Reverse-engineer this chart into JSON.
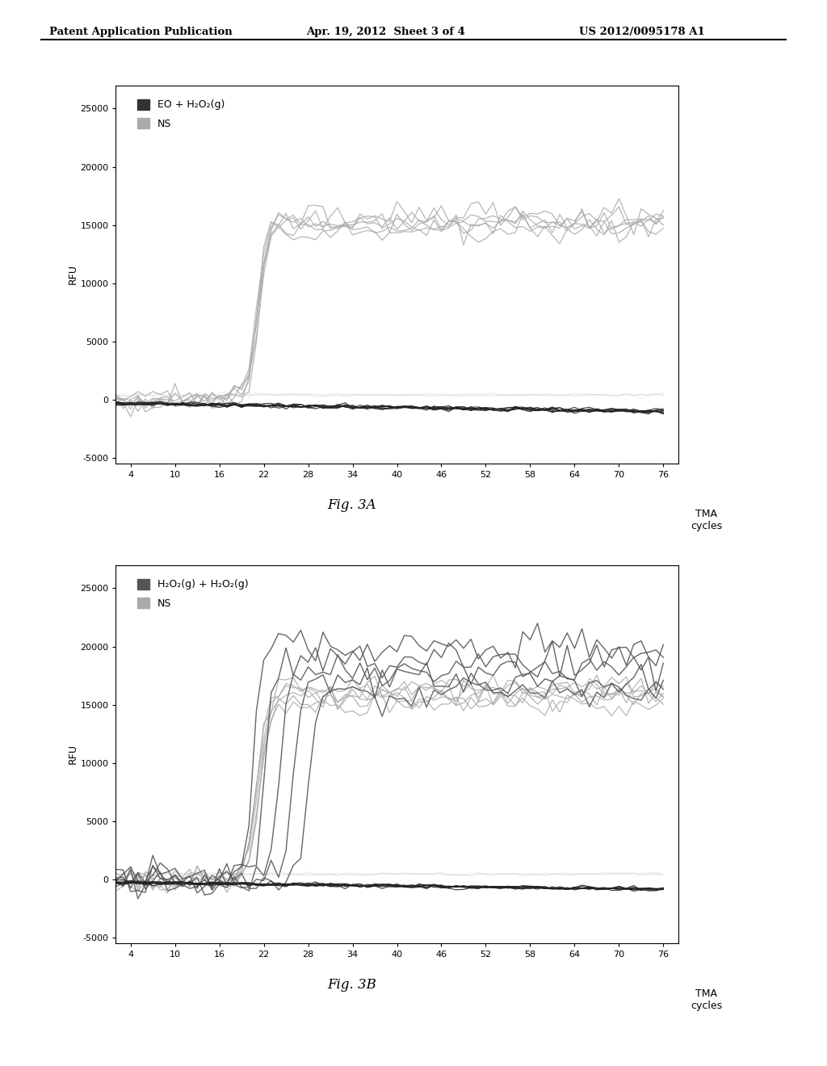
{
  "header_left": "Patent Application Publication",
  "header_mid": "Apr. 19, 2012  Sheet 3 of 4",
  "header_right": "US 2012/0095178 A1",
  "fig3a_title": "Fig. 3A",
  "fig3b_title": "Fig. 3B",
  "tma_label": "TMA\ncycles",
  "ylabel": "RFU",
  "xticks": [
    4,
    10,
    16,
    22,
    28,
    34,
    40,
    46,
    52,
    58,
    64,
    70,
    76
  ],
  "yticks": [
    -5000,
    0,
    5000,
    10000,
    15000,
    20000,
    25000
  ],
  "ylim": [
    -5500,
    27000
  ],
  "xlim": [
    2,
    78
  ],
  "legend3a_1": "EO + H₂O₂(g)",
  "legend3a_2": "NS",
  "legend3b_1": "H₂O₂(g) + H₂O₂(g)",
  "legend3b_2": "NS",
  "bg_color": "#ffffff"
}
